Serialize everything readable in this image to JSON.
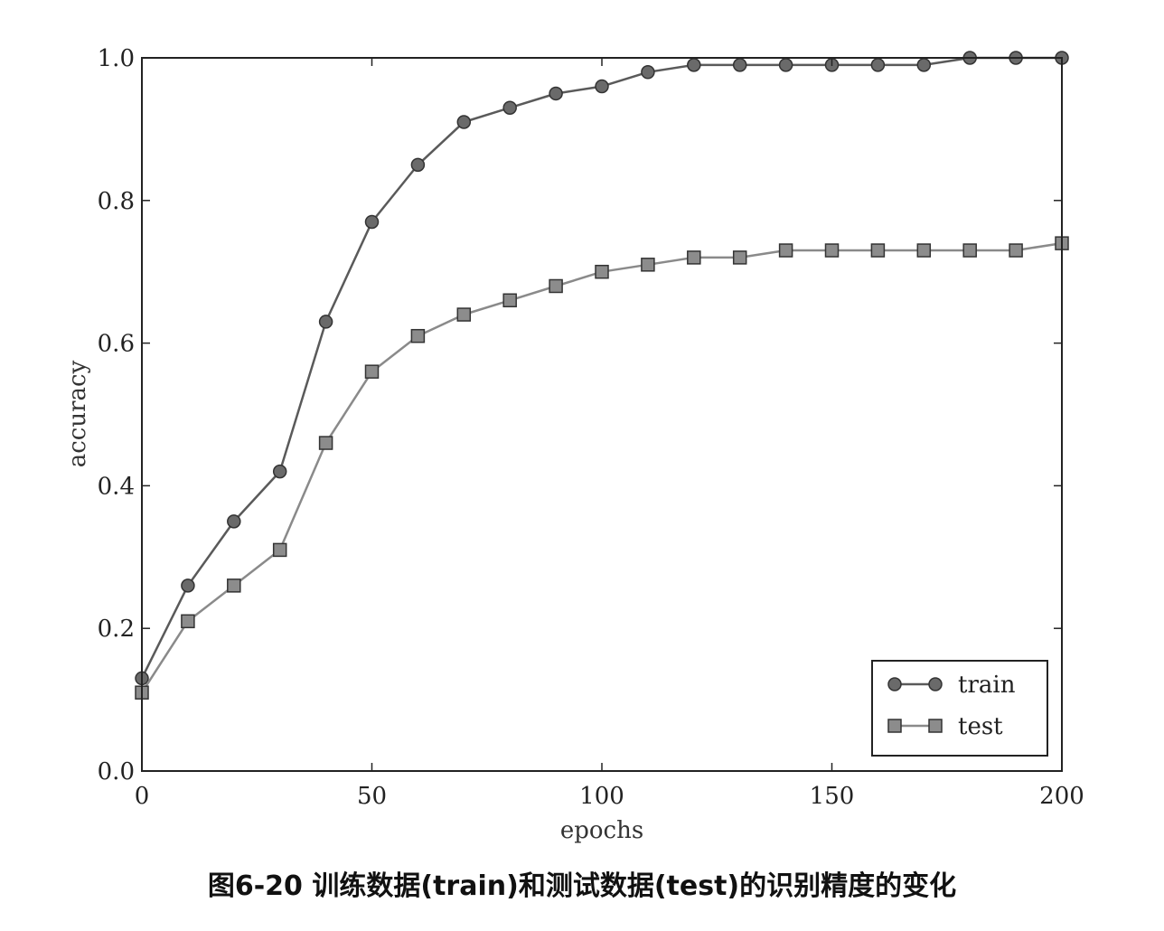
{
  "caption": "图6-20 训练数据(train)和测试数据(test)的识别精度的变化",
  "chart_data": {
    "type": "line",
    "xlabel": "epochs",
    "ylabel": "accuracy",
    "xlim": [
      0,
      200
    ],
    "ylim": [
      0.0,
      1.0
    ],
    "xticks": [
      0,
      50,
      100,
      150,
      200
    ],
    "xtick_labels": [
      "0",
      "50",
      "100",
      "150",
      "200"
    ],
    "yticks": [
      0.0,
      0.2,
      0.4,
      0.6,
      0.8,
      1.0
    ],
    "ytick_labels": [
      "0.0",
      "0.2",
      "0.4",
      "0.6",
      "0.8",
      "1.0"
    ],
    "grid": false,
    "legend_position": "lower-right",
    "x": [
      0,
      10,
      20,
      30,
      40,
      50,
      60,
      70,
      80,
      90,
      100,
      110,
      120,
      130,
      140,
      150,
      160,
      170,
      180,
      190,
      200
    ],
    "series": [
      {
        "name": "train",
        "marker": "circle",
        "color": "#5a5a5a",
        "values": [
          0.13,
          0.26,
          0.35,
          0.42,
          0.63,
          0.77,
          0.85,
          0.91,
          0.93,
          0.95,
          0.96,
          0.98,
          0.99,
          0.99,
          0.99,
          0.99,
          0.99,
          0.99,
          1.0,
          1.0,
          1.0
        ]
      },
      {
        "name": "test",
        "marker": "square",
        "color": "#8a8a8a",
        "values": [
          0.11,
          0.21,
          0.26,
          0.31,
          0.46,
          0.56,
          0.61,
          0.64,
          0.66,
          0.68,
          0.7,
          0.71,
          0.72,
          0.72,
          0.73,
          0.73,
          0.73,
          0.73,
          0.73,
          0.73,
          0.74
        ]
      }
    ]
  }
}
